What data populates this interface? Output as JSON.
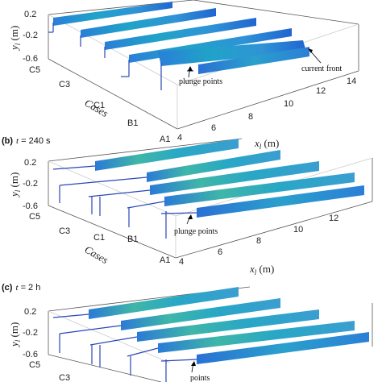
{
  "figure": {
    "panels": [
      {
        "id": "a",
        "label": "",
        "y_ticks": [
          "0.2",
          "-0.2",
          "-0.6"
        ],
        "y_label": "y",
        "y_label_sub": "l",
        "y_unit": " (m)",
        "case_ticks": [
          "C5",
          "C3",
          "C1",
          "B1",
          "A1"
        ],
        "case_label": "Cases",
        "x_ticks": [
          "4",
          "6",
          "8",
          "10",
          "12",
          "14"
        ],
        "x_label": "x",
        "x_label_sub": "l",
        "x_unit": " (m)",
        "annotations": [
          "plunge points",
          "current front"
        ]
      },
      {
        "id": "b",
        "label": "(b)",
        "time_var": "t",
        "time_value": " = 240 s",
        "y_ticks": [
          "0.2",
          "-0.2",
          "-0.6"
        ],
        "y_label": "y",
        "y_label_sub": "l",
        "y_unit": " (m)",
        "case_ticks": [
          "C5",
          "C3",
          "C1",
          "B1",
          "A1"
        ],
        "case_label": "Cases",
        "x_ticks": [
          "4",
          "6",
          "8",
          "10",
          "12"
        ],
        "x_label": "x",
        "x_label_sub": "l",
        "x_unit": " (m)",
        "annotations": [
          "plunge points"
        ]
      },
      {
        "id": "c",
        "label": "(c)",
        "time_var": "t",
        "time_value": " = 2 h",
        "y_ticks": [
          "0.2",
          "-0.2",
          "-0.6"
        ],
        "y_label": "y",
        "y_label_sub": "l",
        "y_unit": " (m)",
        "case_ticks": [
          "C5",
          "C3"
        ],
        "case_label": "",
        "x_ticks": [],
        "x_label": "",
        "annotations": [
          "points"
        ]
      }
    ],
    "colors": {
      "strip_base": "#1f6fd0",
      "strip_mid": "#18a6c8",
      "strip_light": "#4cc09a",
      "rail": "#2a46b8",
      "axis": "#333333"
    }
  }
}
